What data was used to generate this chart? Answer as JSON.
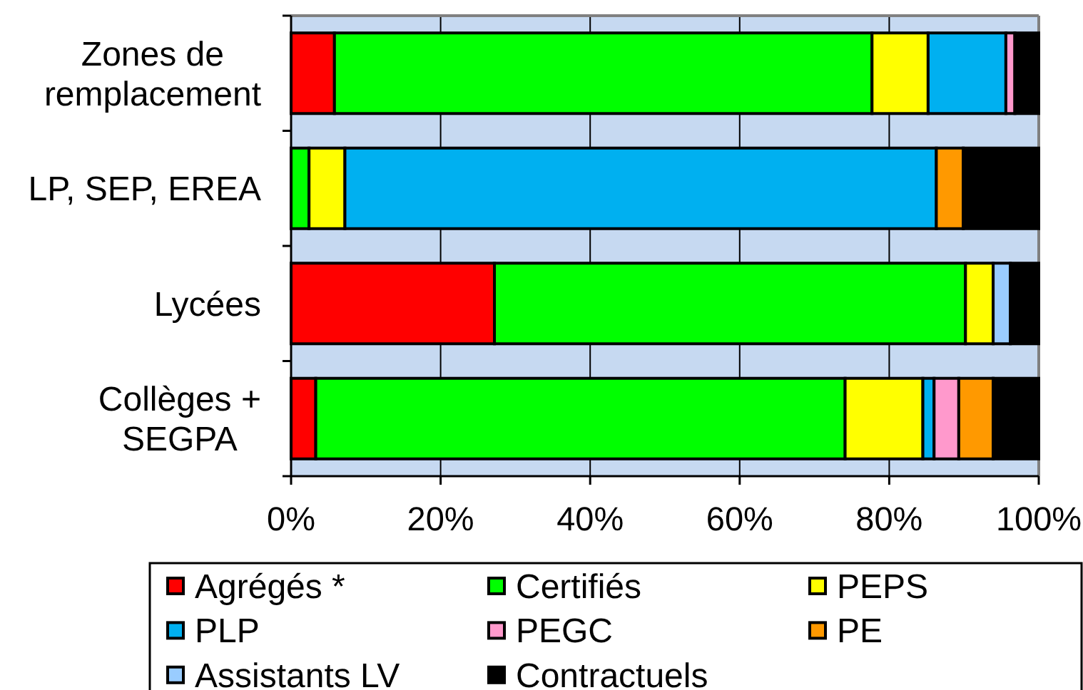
{
  "chart_data": {
    "type": "bar",
    "orientation": "horizontal",
    "stacked": true,
    "categories": [
      "Zones de remplacement",
      "LP, SEP, EREA",
      "Lycées",
      "Collèges + SEGPA"
    ],
    "series": [
      {
        "name": "Agrégés *",
        "color": "#ff0000",
        "values": [
          5.8,
          0,
          27.2,
          3.3
        ]
      },
      {
        "name": "Certifiés",
        "color": "#00ff00",
        "values": [
          71.9,
          2.4,
          63.0,
          70.8
        ]
      },
      {
        "name": "PEPS",
        "color": "#ffff00",
        "values": [
          7.5,
          4.8,
          3.7,
          10.4
        ]
      },
      {
        "name": "PLP",
        "color": "#00b0f0",
        "values": [
          10.4,
          79.1,
          0,
          1.5
        ]
      },
      {
        "name": "PEGC",
        "color": "#ff99cc",
        "values": [
          1.2,
          0,
          0,
          3.3
        ]
      },
      {
        "name": "PE",
        "color": "#ff9900",
        "values": [
          0,
          3.6,
          0,
          4.6
        ]
      },
      {
        "name": "Assistants LV",
        "color": "#99ccff",
        "values": [
          0,
          0,
          2.3,
          0
        ]
      },
      {
        "name": "Contractuels",
        "color": "#000000",
        "values": [
          3.2,
          10.1,
          3.8,
          6.1
        ]
      }
    ],
    "xlim": [
      0,
      100
    ],
    "xticks": [
      {
        "value": 0,
        "label": "0%"
      },
      {
        "value": 20,
        "label": "20%"
      },
      {
        "value": 40,
        "label": "40%"
      },
      {
        "value": 60,
        "label": "60%"
      },
      {
        "value": 80,
        "label": "80%"
      },
      {
        "value": 100,
        "label": "100%"
      }
    ],
    "bands": [
      {
        "axis": "x",
        "from": 0,
        "to": 100,
        "color": "#c6d9f1"
      }
    ],
    "grid": "x",
    "legend": "bottom"
  }
}
